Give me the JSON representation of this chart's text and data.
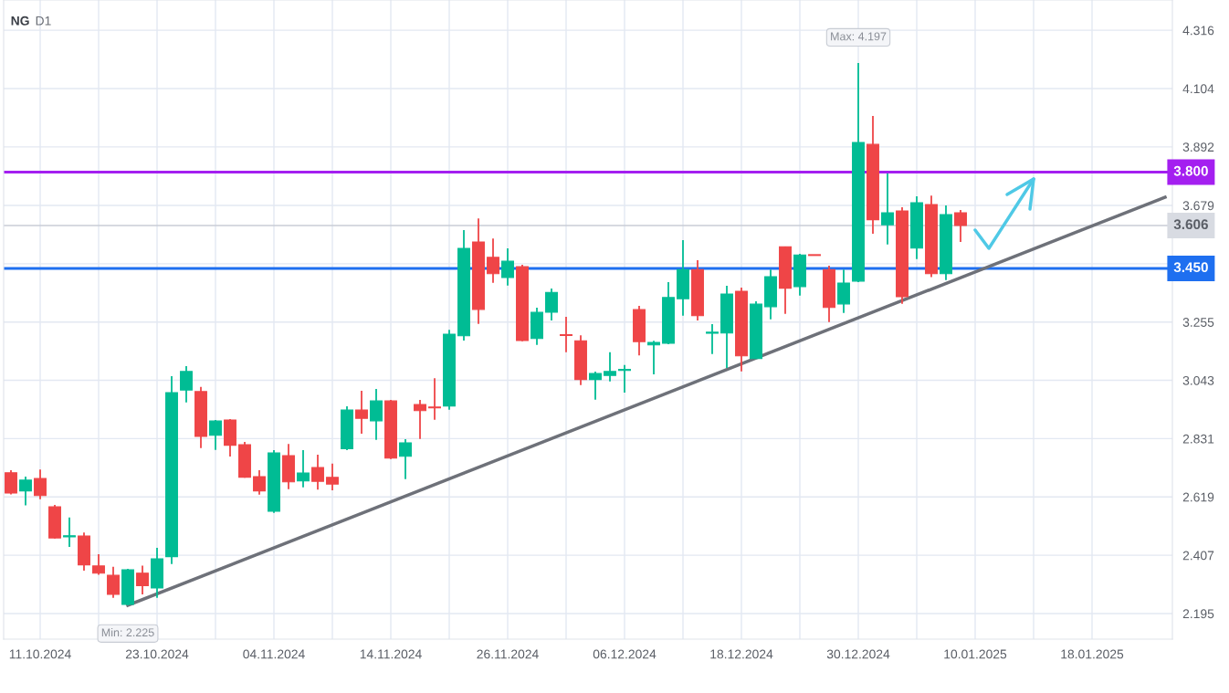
{
  "chart_data": {
    "type": "candlestick",
    "title": "NG",
    "subtitle": "D1",
    "categories": [
      null,
      null,
      "11.10.2024",
      null,
      null,
      null,
      null,
      null,
      null,
      null,
      "23.10.2024",
      null,
      null,
      null,
      null,
      null,
      null,
      null,
      "04.11.2024",
      null,
      null,
      null,
      null,
      null,
      null,
      null,
      "14.11.2024",
      null,
      null,
      null,
      null,
      null,
      null,
      null,
      "26.11.2024",
      null,
      null,
      null,
      null,
      null,
      null,
      null,
      "06.12.2024",
      null,
      null,
      null,
      null,
      null,
      null,
      null,
      "18.12.2024",
      null,
      null,
      null,
      null,
      null,
      null,
      null,
      "30.12.2024",
      null,
      null,
      null,
      null,
      null,
      null,
      null,
      "10.01.2025",
      null,
      null,
      null,
      null,
      null,
      null,
      null,
      "18.01.2025",
      null,
      null,
      null,
      null,
      null
    ],
    "ohlc": [
      [
        2.707,
        2.716,
        2.628,
        2.633
      ],
      [
        2.641,
        2.693,
        2.588,
        2.68
      ],
      [
        2.686,
        2.719,
        2.611,
        2.624
      ],
      [
        2.583,
        2.59,
        2.467,
        2.47
      ],
      [
        2.474,
        2.544,
        2.437,
        2.478
      ],
      [
        2.477,
        2.49,
        2.351,
        2.372
      ],
      [
        2.368,
        2.411,
        2.336,
        2.342
      ],
      [
        2.334,
        2.365,
        2.252,
        2.265
      ],
      [
        2.228,
        2.358,
        2.225,
        2.354
      ],
      [
        2.342,
        2.369,
        2.265,
        2.296
      ],
      [
        2.288,
        2.434,
        2.252,
        2.394
      ],
      [
        2.402,
        3.058,
        2.375,
        2.998
      ],
      [
        3.008,
        3.095,
        2.963,
        3.075
      ],
      [
        3.002,
        3.019,
        2.797,
        2.839
      ],
      [
        2.843,
        2.899,
        2.79,
        2.895
      ],
      [
        2.899,
        2.902,
        2.766,
        2.807
      ],
      [
        2.809,
        2.819,
        2.689,
        2.691
      ],
      [
        2.693,
        2.716,
        2.627,
        2.641
      ],
      [
        2.567,
        2.789,
        2.561,
        2.779
      ],
      [
        2.769,
        2.812,
        2.647,
        2.674
      ],
      [
        2.677,
        2.789,
        2.654,
        2.706
      ],
      [
        2.726,
        2.773,
        2.646,
        2.676
      ],
      [
        2.69,
        2.74,
        2.643,
        2.666
      ],
      [
        2.794,
        2.949,
        2.789,
        2.935
      ],
      [
        2.935,
        3.005,
        2.849,
        2.905
      ],
      [
        2.896,
        3.012,
        2.827,
        2.968
      ],
      [
        2.968,
        2.972,
        2.757,
        2.76
      ],
      [
        2.767,
        2.829,
        2.684,
        2.816
      ],
      [
        2.955,
        2.972,
        2.83,
        2.933
      ],
      [
        2.946,
        3.051,
        2.9,
        2.943
      ],
      [
        2.95,
        3.227,
        2.936,
        3.211
      ],
      [
        3.205,
        3.589,
        3.188,
        3.523
      ],
      [
        3.546,
        3.632,
        3.248,
        3.301
      ],
      [
        3.49,
        3.559,
        3.398,
        3.431
      ],
      [
        3.417,
        3.523,
        3.388,
        3.476
      ],
      [
        3.456,
        3.463,
        3.185,
        3.188
      ],
      [
        3.195,
        3.307,
        3.172,
        3.29
      ],
      [
        3.291,
        3.377,
        3.261,
        3.363
      ],
      [
        3.209,
        3.274,
        3.145,
        3.206
      ],
      [
        3.187,
        3.207,
        3.026,
        3.046
      ],
      [
        3.046,
        3.075,
        2.973,
        3.068
      ],
      [
        3.061,
        3.145,
        3.039,
        3.075
      ],
      [
        3.079,
        3.099,
        2.998,
        3.083
      ],
      [
        3.3,
        3.314,
        3.134,
        3.184
      ],
      [
        3.172,
        3.187,
        3.065,
        3.181
      ],
      [
        3.178,
        3.4,
        3.174,
        3.344
      ],
      [
        3.34,
        3.553,
        3.278,
        3.446
      ],
      [
        3.446,
        3.48,
        3.261,
        3.278
      ],
      [
        3.214,
        3.247,
        3.139,
        3.218
      ],
      [
        3.215,
        3.387,
        3.088,
        3.357
      ],
      [
        3.367,
        3.38,
        3.076,
        3.132
      ],
      [
        3.122,
        3.33,
        3.121,
        3.32
      ],
      [
        3.311,
        3.446,
        3.265,
        3.42
      ],
      [
        3.529,
        3.53,
        3.285,
        3.378
      ],
      [
        3.384,
        3.503,
        3.351,
        3.499
      ],
      [
        3.5,
        3.5,
        3.497,
        3.497
      ],
      [
        3.446,
        3.46,
        3.255,
        3.308
      ],
      [
        3.321,
        3.446,
        3.288,
        3.397
      ],
      [
        3.404,
        4.197,
        3.4,
        3.908
      ],
      [
        3.901,
        4.004,
        3.576,
        3.627
      ],
      [
        3.609,
        3.795,
        3.537,
        3.652
      ],
      [
        3.659,
        3.672,
        3.321,
        3.347
      ],
      [
        3.524,
        3.712,
        3.484,
        3.689
      ],
      [
        3.682,
        3.715,
        3.418,
        3.431
      ],
      [
        3.431,
        3.679,
        3.408,
        3.646
      ],
      [
        3.652,
        3.662,
        3.546,
        3.606
      ],
      null,
      null,
      null,
      null,
      null,
      null,
      null,
      null,
      null,
      null,
      null,
      null,
      null,
      null
    ],
    "colors": [
      "#ef4547",
      "#00bc94",
      "#ef4547",
      "#ef4547",
      "#00bc94",
      "#ef4547",
      "#ef4547",
      "#ef4547",
      "#00bc94",
      "#ef4547",
      "#00bc94",
      "#00bc94",
      "#00bc94",
      "#ef4547",
      "#00bc94",
      "#ef4547",
      "#ef4547",
      "#ef4547",
      "#00bc94",
      "#ef4547",
      "#00bc94",
      "#ef4547",
      "#ef4547",
      "#00bc94",
      "#ef4547",
      "#00bc94",
      "#ef4547",
      "#00bc94",
      "#ef4547",
      "#ef4547",
      "#00bc94",
      "#00bc94",
      "#ef4547",
      "#ef4547",
      "#00bc94",
      "#ef4547",
      "#00bc94",
      "#00bc94",
      "#ef4547",
      "#ef4547",
      "#00bc94",
      "#00bc94",
      "#00bc94",
      "#ef4547",
      "#00bc94",
      "#00bc94",
      "#00bc94",
      "#ef4547",
      "#00bc94",
      "#00bc94",
      "#ef4547",
      "#00bc94",
      "#00bc94",
      "#ef4547",
      "#00bc94",
      "#ef4547",
      "#ef4547",
      "#00bc94",
      "#00bc94",
      "#ef4547",
      "#00bc94",
      "#ef4547",
      "#00bc94",
      "#ef4547",
      "#00bc94",
      "#ef4547",
      null,
      null,
      null,
      null,
      null,
      null,
      null,
      null,
      null,
      null,
      null,
      null,
      null,
      null
    ],
    "series": [
      {
        "type": "line",
        "color": "#6e7179",
        "values": [
          null,
          null,
          null,
          null,
          null,
          null,
          null,
          null,
          2.225,
          null,
          null,
          null,
          null,
          null,
          null,
          null,
          null,
          null,
          null,
          null,
          null,
          null,
          null,
          null,
          null,
          null,
          null,
          null,
          null,
          null,
          null,
          null,
          null,
          null,
          null,
          null,
          null,
          null,
          null,
          null,
          null,
          null,
          null,
          null,
          null,
          null,
          null,
          null,
          null,
          null,
          null,
          null,
          null,
          null,
          null,
          null,
          null,
          null,
          null,
          null,
          null,
          null,
          null,
          null,
          null,
          null,
          null,
          null,
          null,
          null,
          null,
          null,
          null,
          null,
          null,
          null,
          null,
          null,
          null,
          3.709
        ]
      }
    ],
    "ylim": [
      2.102,
      4.426
    ],
    "yticks": [
      2.195,
      2.407,
      2.619,
      2.831,
      3.043,
      3.255,
      {
        "value": 3.467,
        "label": null
      },
      3.679,
      3.892,
      4.104,
      4.316
    ],
    "ref_lines": [
      {
        "axis": "y",
        "value": 3.8,
        "label": "3.800",
        "color": "#a41ff0"
      },
      {
        "axis": "y",
        "value": 3.45,
        "label": "3.450",
        "color": "#1e6ff0"
      },
      {
        "axis": "y",
        "value": 3.606,
        "label": "3.606",
        "color": "#c9cdd6"
      }
    ],
    "annotations": [
      {
        "text": "Max: 4.197",
        "x": "30.12.2024",
        "y": 4.197
      },
      {
        "text": "Min: 2.225",
        "y": 2.225
      }
    ],
    "grid": true
  }
}
